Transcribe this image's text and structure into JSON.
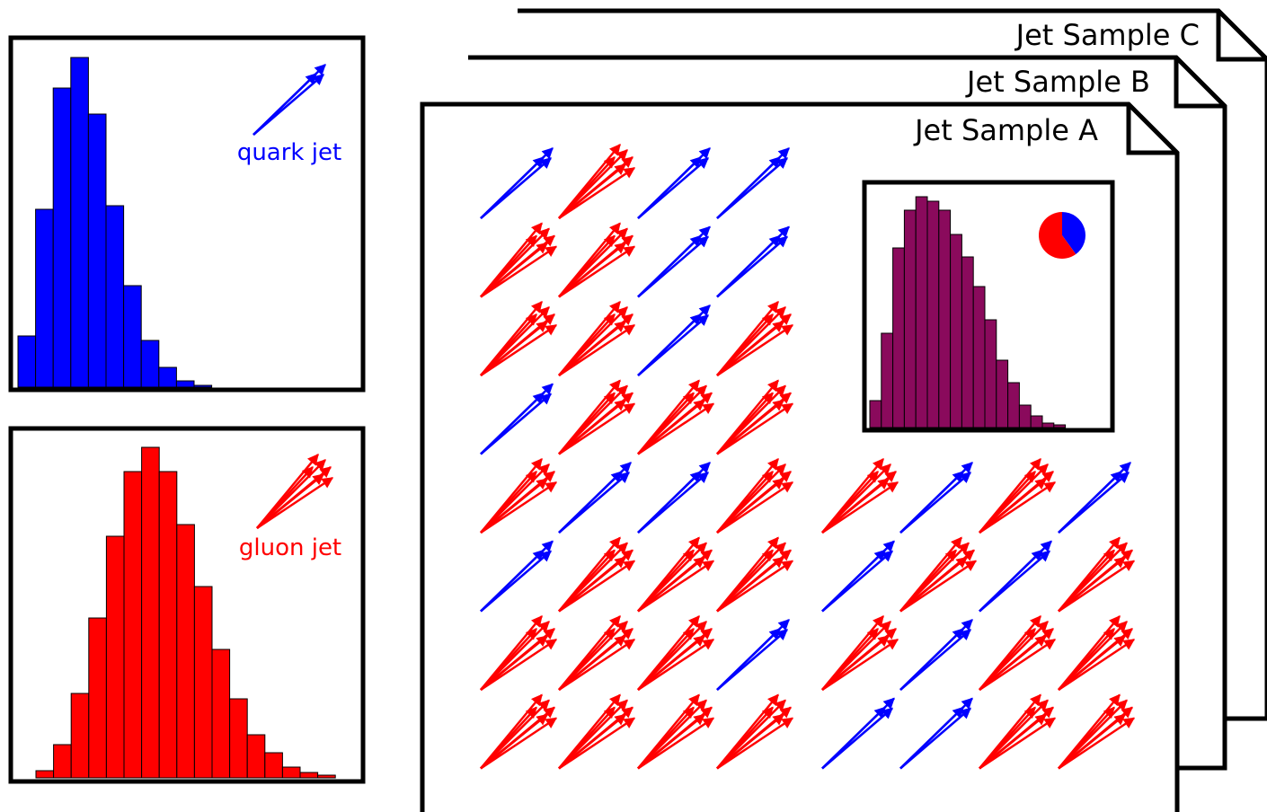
{
  "quark_panel": {
    "label": "quark jet",
    "counts": [
      57,
      198,
      333,
      367,
      304,
      202,
      113,
      52,
      22,
      7,
      2
    ]
  },
  "gluon_panel": {
    "label": "gluon jet",
    "counts": [
      8,
      37,
      94,
      178,
      269,
      341,
      368,
      341,
      282,
      213,
      143,
      88,
      48,
      28,
      12,
      6,
      3
    ]
  },
  "samples": [
    {
      "label": "Jet Sample C"
    },
    {
      "label": "Jet Sample B"
    },
    {
      "label": "Jet Sample A"
    }
  ],
  "sample_a_histogram": {
    "counts": [
      30,
      105,
      200,
      242,
      257,
      252,
      242,
      215,
      190,
      157,
      120,
      75,
      50,
      25,
      13,
      5,
      3
    ]
  },
  "sample_a_pie": {
    "quark_fraction": 40,
    "gluon_fraction": 60
  }
}
